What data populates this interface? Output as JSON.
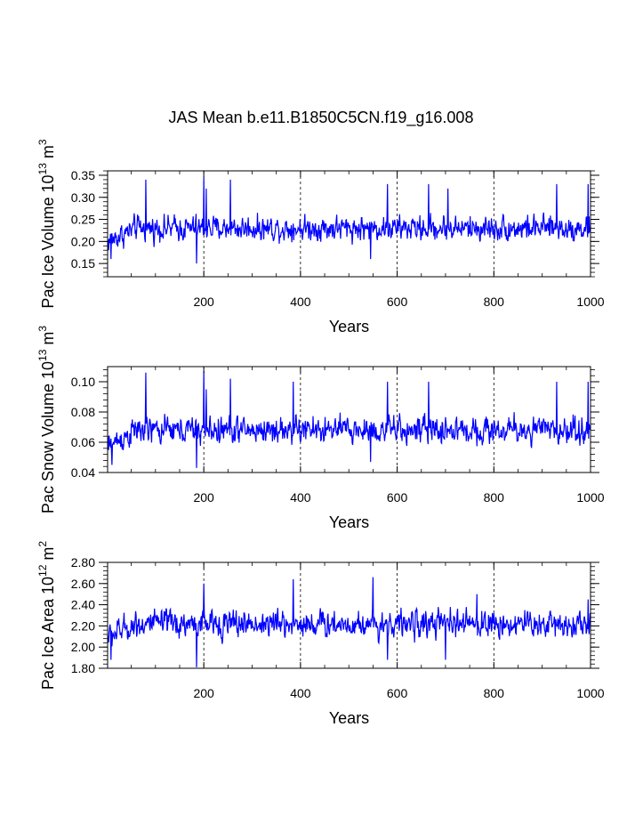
{
  "title": "JAS Mean b.e11.B1850C5CN.f19_g16.008",
  "line_color": "#0000ff",
  "chart_data": [
    {
      "type": "line",
      "xlabel": "Years",
      "ylabel_main": "Pac Ice Volume 10",
      "ylabel_exp": "13",
      "ylabel_unit": " m",
      "ylabel_unit_exp": "3",
      "xlim": [
        1,
        1000
      ],
      "ylim": [
        0.12,
        0.36
      ],
      "xticks": [
        200,
        400,
        600,
        800,
        1000
      ],
      "xtick_labels": [
        "200",
        "400",
        "600",
        "800",
        "1000"
      ],
      "yticks": [
        0.15,
        0.2,
        0.25,
        0.3,
        0.35
      ],
      "ytick_labels": [
        "0.15",
        "0.20",
        "0.25",
        "0.30",
        "0.35"
      ],
      "grid": "dashed vertical at x ticks",
      "series": [
        {
          "name": "Pac Ice Volume",
          "mean": 0.23,
          "noise": 0.022,
          "start": 0.2,
          "spikes": [
            [
              80,
              0.34
            ],
            [
              200,
              0.345
            ],
            [
              205,
              0.32
            ],
            [
              255,
              0.34
            ],
            [
              580,
              0.33
            ],
            [
              665,
              0.33
            ],
            [
              705,
              0.32
            ],
            [
              930,
              0.33
            ],
            [
              995,
              0.33
            ],
            [
              185,
              0.15
            ],
            [
              545,
              0.16
            ],
            [
              8,
              0.16
            ]
          ]
        }
      ]
    },
    {
      "type": "line",
      "xlabel": "Years",
      "ylabel_main": "Pac Snow Volume 10",
      "ylabel_exp": "13",
      "ylabel_unit": " m",
      "ylabel_unit_exp": "3",
      "xlim": [
        1,
        1000
      ],
      "ylim": [
        0.04,
        0.11
      ],
      "xticks": [
        200,
        400,
        600,
        800,
        1000
      ],
      "xtick_labels": [
        "200",
        "400",
        "600",
        "800",
        "1000"
      ],
      "yticks": [
        0.04,
        0.06,
        0.08,
        0.1
      ],
      "ytick_labels": [
        "0.04",
        "0.06",
        "0.08",
        "0.10"
      ],
      "grid": "dashed vertical at x ticks",
      "series": [
        {
          "name": "Pac Snow Volume",
          "mean": 0.068,
          "noise": 0.007,
          "start": 0.057,
          "spikes": [
            [
              80,
              0.106
            ],
            [
              200,
              0.107
            ],
            [
              205,
              0.095
            ],
            [
              255,
              0.102
            ],
            [
              385,
              0.1
            ],
            [
              580,
              0.1
            ],
            [
              665,
              0.1
            ],
            [
              930,
              0.1
            ],
            [
              995,
              0.1
            ],
            [
              185,
              0.043
            ],
            [
              10,
              0.045
            ],
            [
              545,
              0.047
            ]
          ]
        }
      ]
    },
    {
      "type": "line",
      "xlabel": "Years",
      "ylabel_main": "Pac Ice Area 10",
      "ylabel_exp": "12",
      "ylabel_unit": " m",
      "ylabel_unit_exp": "2",
      "xlim": [
        1,
        1000
      ],
      "ylim": [
        1.8,
        2.8
      ],
      "xticks": [
        200,
        400,
        600,
        800,
        1000
      ],
      "xtick_labels": [
        "200",
        "400",
        "600",
        "800",
        "1000"
      ],
      "yticks": [
        1.8,
        2.0,
        2.2,
        2.4,
        2.6,
        2.8
      ],
      "ytick_labels": [
        "1.80",
        "2.00",
        "2.20",
        "2.40",
        "2.60",
        "2.80"
      ],
      "grid": "dashed vertical at x ticks",
      "series": [
        {
          "name": "Pac Ice Area",
          "mean": 2.22,
          "noise": 0.1,
          "start": 2.1,
          "spikes": [
            [
              185,
              1.81
            ],
            [
              200,
              2.6
            ],
            [
              385,
              2.64
            ],
            [
              550,
              2.66
            ],
            [
              580,
              1.88
            ],
            [
              8,
              1.88
            ],
            [
              700,
              1.88
            ],
            [
              765,
              2.5
            ],
            [
              995,
              2.45
            ]
          ]
        }
      ]
    }
  ]
}
